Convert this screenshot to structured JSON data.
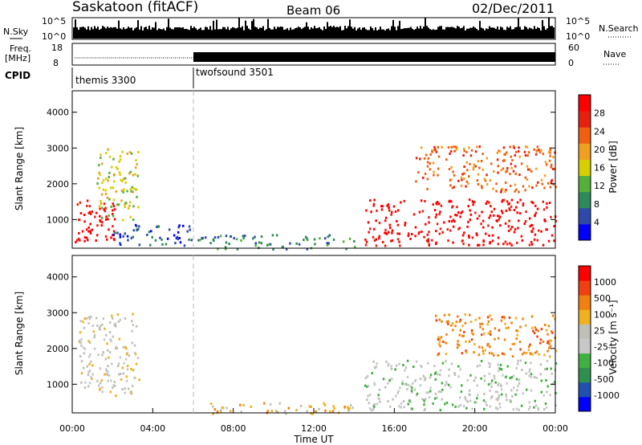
{
  "header": {
    "station": "Saskatoon (fitACF)",
    "beam": "Beam 06",
    "date": "02/Dec/2011"
  },
  "noise_panel": {
    "left_label": "N.Sky",
    "right_label": "N.Search",
    "left_ticks": [
      "10^5",
      "10^0"
    ],
    "right_ticks": [
      "10^5",
      "10^0"
    ]
  },
  "freq_panel": {
    "left_label_1": "Freq.",
    "left_label_2": "[MHz]",
    "right_label": "Nave",
    "left_ticks": [
      "18",
      "8"
    ],
    "right_ticks": [
      "60",
      "0"
    ]
  },
  "cpid": {
    "label": "CPID",
    "segments": [
      {
        "name": "themis 3300",
        "start_hour": 0,
        "end_hour": 6
      },
      {
        "name": "twofsound 3501",
        "start_hour": 6,
        "end_hour": 24
      }
    ]
  },
  "colors": {
    "power_scale": [
      "#0000ff",
      "#2e4aa8",
      "#2e8a5a",
      "#55b03a",
      "#d6d000",
      "#f0a020",
      "#f06010",
      "#e82010",
      "#ff0000"
    ],
    "velocity_scale": [
      "#ff0000",
      "#f04010",
      "#f08010",
      "#f0b020",
      "#c0c0b8",
      "#c8c8c8",
      "#40b040",
      "#2f8f4f",
      "#2050b0",
      "#0000ff"
    ]
  },
  "chart_data": [
    {
      "type": "heatmap",
      "name": "power",
      "ylabel": "Slant Range [km]",
      "yticks": [
        "1000",
        "2000",
        "3000",
        "4000"
      ],
      "ylim": [
        200,
        4600
      ],
      "colorbar_label": "Power [dB]",
      "colorbar_ticks": [
        "4",
        "8",
        "12",
        "16",
        "20",
        "24",
        "28"
      ],
      "regions": [
        {
          "t0": 0.1,
          "t1": 2.2,
          "r0": 400,
          "r1": 1600,
          "level": 8
        },
        {
          "t0": 0.2,
          "t1": 1.2,
          "r0": 450,
          "r1": 800,
          "level": 9
        },
        {
          "t0": 1.2,
          "t1": 3.3,
          "r0": 1000,
          "r1": 3000,
          "level": 4
        },
        {
          "t0": 2.0,
          "t1": 6.0,
          "r0": 300,
          "r1": 900,
          "level": 1
        },
        {
          "t0": 6.1,
          "t1": 14.0,
          "r0": 200,
          "r1": 600,
          "level": 2
        },
        {
          "t0": 14.5,
          "t1": 24.0,
          "r0": 300,
          "r1": 1600,
          "level": 8
        },
        {
          "t0": 17.0,
          "t1": 24.0,
          "r0": 1800,
          "r1": 3100,
          "level": 6
        }
      ]
    },
    {
      "type": "heatmap",
      "name": "velocity",
      "xlabel": "Time UT",
      "xticks": [
        "00:00",
        "04:00",
        "08:00",
        "12:00",
        "16:00",
        "20:00",
        "00:00"
      ],
      "ylabel": "Slant Range [km]",
      "yticks": [
        "1000",
        "2000",
        "3000",
        "4000"
      ],
      "ylim": [
        200,
        4600
      ],
      "colorbar_label": "Velocity [m s⁻¹]",
      "colorbar_ticks": [
        "1000",
        "500",
        "100",
        "25",
        "-25",
        "-100",
        "-500",
        "-1000"
      ],
      "regions": [
        {
          "t0": 0.3,
          "t1": 3.3,
          "r0": 700,
          "r1": 3000,
          "level": 4
        },
        {
          "t0": 6.1,
          "t1": 14.0,
          "r0": 200,
          "r1": 500,
          "level": 3
        },
        {
          "t0": 14.5,
          "t1": 24.0,
          "r0": 300,
          "r1": 1700,
          "level": 5
        },
        {
          "t0": 18.0,
          "t1": 24.0,
          "r0": 1800,
          "r1": 3000,
          "level": 2
        }
      ]
    }
  ]
}
